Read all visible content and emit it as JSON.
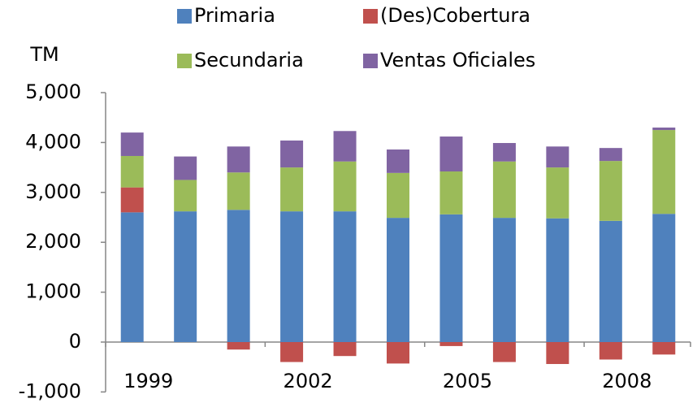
{
  "chart_data": {
    "type": "bar",
    "stacked": true,
    "y_label": "TM",
    "categories": [
      "1999",
      null,
      null,
      "2002",
      null,
      null,
      "2005",
      null,
      null,
      "2008",
      null
    ],
    "series": [
      {
        "name": "Primaria",
        "color": "#4f81bd",
        "values": [
          2600,
          2620,
          2650,
          2620,
          2620,
          2490,
          2560,
          2490,
          2480,
          2430,
          2570
        ]
      },
      {
        "name": "(Des)Cobertura",
        "color": "#c0504d",
        "values": [
          500,
          0,
          -150,
          -400,
          -280,
          -430,
          -80,
          -400,
          -440,
          -350,
          -250
        ]
      },
      {
        "name": "Secundaria",
        "color": "#9bbb59",
        "values": [
          630,
          630,
          750,
          880,
          1000,
          900,
          860,
          1130,
          1020,
          1200,
          1680
        ]
      },
      {
        "name": "Ventas Oficiales",
        "color": "#8064a2",
        "values": [
          470,
          470,
          520,
          540,
          610,
          470,
          700,
          370,
          420,
          260,
          50
        ]
      }
    ],
    "ylim": [
      -1000,
      5000
    ],
    "yticks": [
      {
        "value": -1000,
        "label": "-1,000"
      },
      0,
      {
        "value": 1000,
        "label": "1,000"
      },
      {
        "value": 2000,
        "label": "2,000"
      },
      {
        "value": 3000,
        "label": "3,000"
      },
      {
        "value": 4000,
        "label": "4,000"
      },
      {
        "value": 5000,
        "label": "5,000"
      }
    ],
    "grid": false
  }
}
